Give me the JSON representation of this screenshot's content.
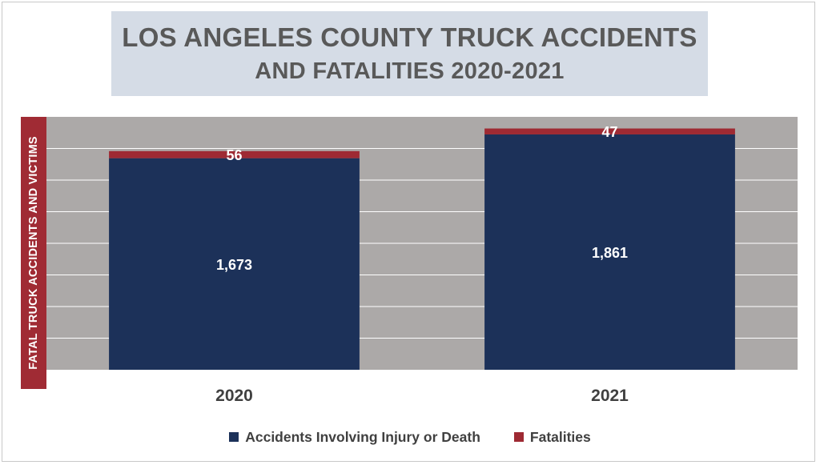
{
  "chart_data": {
    "type": "bar",
    "stacked": true,
    "title": "LOS ANGELES COUNTY TRUCK ACCIDENTS",
    "subtitle": "AND FATALITIES 2020-2021",
    "xlabel": "",
    "ylabel": "FATAL TRUCK ACCIDENTS AND VICTIMS",
    "ylim": [
      0,
      2000
    ],
    "grid": true,
    "legend_position": "bottom",
    "categories": [
      "2020",
      "2021"
    ],
    "series": [
      {
        "name": "Accidents Involving Injury or Death",
        "values": [
          1673,
          1861
        ],
        "labels": [
          "1,673",
          "1,861"
        ],
        "color": "#1c3159"
      },
      {
        "name": "Fatalities",
        "values": [
          56,
          47
        ],
        "labels": [
          "56",
          "47"
        ],
        "color": "#9e2a33"
      }
    ],
    "colors": {
      "plot_background": "#aca9a8",
      "gridline": "#ffffff",
      "title_background": "#d5dce6",
      "ylabel_background": "#a02b34"
    }
  }
}
